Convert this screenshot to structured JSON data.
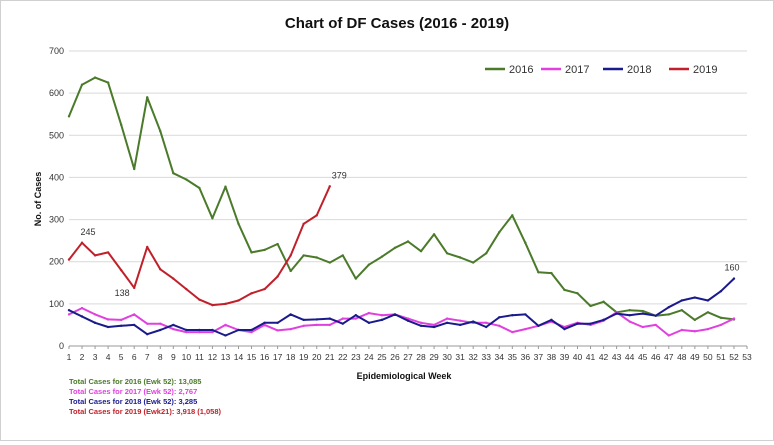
{
  "chart_data": {
    "type": "line",
    "title": "Chart of DF Cases (2016 - 2019)",
    "xlabel": "Epidemiological Week",
    "ylabel": "No. of Cases",
    "xlim": [
      1,
      53
    ],
    "ylim": [
      0,
      700
    ],
    "y_ticks": [
      0,
      100,
      200,
      300,
      400,
      500,
      600,
      700
    ],
    "x_ticks": [
      1,
      2,
      3,
      4,
      5,
      6,
      7,
      8,
      9,
      10,
      11,
      12,
      13,
      14,
      15,
      16,
      17,
      18,
      19,
      20,
      21,
      22,
      23,
      24,
      25,
      26,
      27,
      28,
      29,
      30,
      31,
      32,
      33,
      34,
      35,
      36,
      37,
      38,
      39,
      40,
      41,
      42,
      43,
      44,
      45,
      46,
      47,
      48,
      49,
      50,
      51,
      52,
      53
    ],
    "grid": "horizontal",
    "legend_position": "top-right",
    "series": [
      {
        "name": "2016",
        "color": "#4a7a2a",
        "values": [
          545,
          620,
          637,
          625,
          525,
          420,
          590,
          510,
          410,
          395,
          375,
          303,
          378,
          290,
          222,
          228,
          242,
          178,
          215,
          210,
          198,
          215,
          160,
          193,
          212,
          233,
          248,
          225,
          265,
          220,
          210,
          198,
          220,
          270,
          310,
          245,
          175,
          173,
          133,
          125,
          95,
          105,
          80,
          85,
          83,
          72,
          75,
          85,
          62,
          80,
          67,
          63
        ]
      },
      {
        "name": "2017",
        "color": "#e040e0",
        "values": [
          75,
          90,
          75,
          63,
          62,
          75,
          53,
          53,
          40,
          33,
          33,
          33,
          50,
          38,
          33,
          50,
          37,
          40,
          48,
          50,
          50,
          65,
          65,
          78,
          73,
          75,
          65,
          55,
          50,
          65,
          60,
          55,
          55,
          48,
          33,
          40,
          48,
          58,
          45,
          55,
          50,
          60,
          80,
          58,
          45,
          50,
          25,
          38,
          35,
          40,
          50,
          65
        ]
      },
      {
        "name": "2018",
        "color": "#1a1a8c",
        "values": [
          85,
          70,
          55,
          45,
          48,
          50,
          28,
          38,
          50,
          38,
          38,
          38,
          25,
          38,
          38,
          55,
          55,
          75,
          62,
          63,
          65,
          53,
          73,
          55,
          62,
          75,
          60,
          48,
          45,
          55,
          50,
          58,
          45,
          68,
          73,
          75,
          48,
          62,
          40,
          53,
          53,
          62,
          77,
          73,
          77,
          72,
          92,
          108,
          115,
          108,
          130,
          160
        ]
      },
      {
        "name": "2019",
        "color": "#c0202a",
        "values": [
          205,
          245,
          215,
          222,
          180,
          138,
          235,
          182,
          160,
          135,
          110,
          97,
          100,
          108,
          125,
          135,
          165,
          215,
          290,
          310,
          379
        ]
      }
    ],
    "annotations": [
      "245",
      "138",
      "379",
      "160"
    ]
  },
  "footnotes": [
    {
      "text": "Total Cases for 2016 (Ewk 52): 13,085",
      "color": "#4a7a2a"
    },
    {
      "text": "Total Cases for 2017 (Ewk 52): 2,767",
      "color": "#e040e0"
    },
    {
      "text": "Total Cases for 2018 (Ewk 52): 3,285",
      "color": "#1a1a8c"
    },
    {
      "text": "Total Cases for 2019 (Ewk21): 3,918 (1,058)",
      "color": "#c0202a"
    }
  ]
}
